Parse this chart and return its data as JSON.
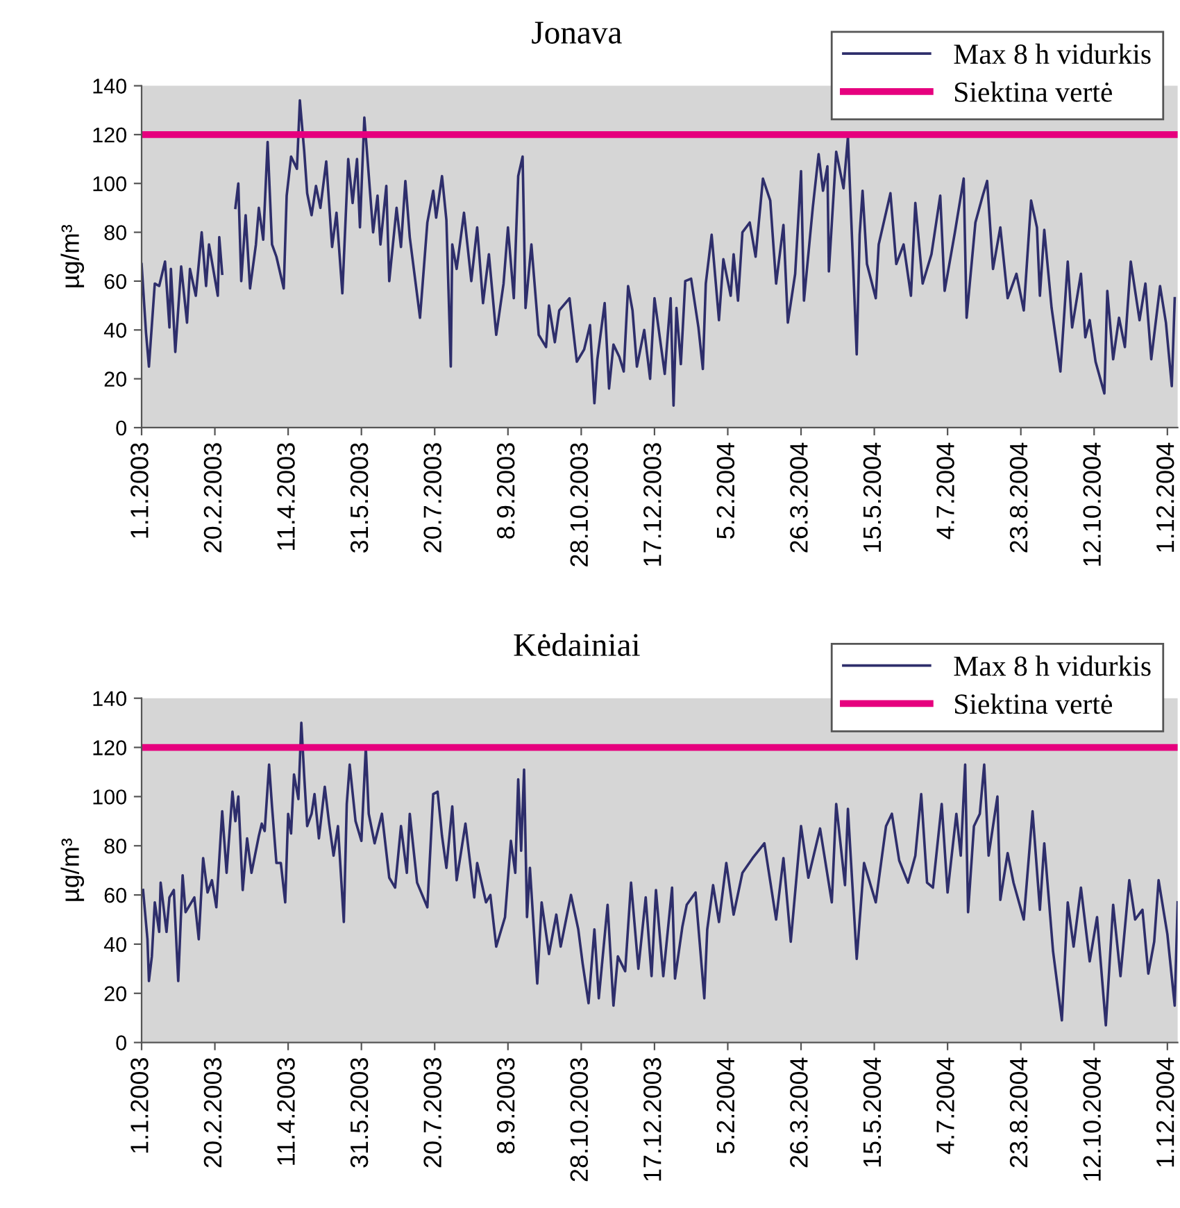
{
  "chart_data": [
    {
      "type": "line",
      "title": "Jonava",
      "ylabel": "µg/m³",
      "ylim": [
        0,
        140
      ],
      "yticks": [
        0,
        20,
        40,
        60,
        80,
        100,
        120,
        140
      ],
      "xlim": [
        "2003-01-01",
        "2004-12-08"
      ],
      "xticks": [
        {
          "value": "2003-01-01",
          "label": "1.1.2003"
        },
        {
          "value": "2003-02-20",
          "label": "20.2.2003"
        },
        {
          "value": "2003-04-11",
          "label": "11.4.2003"
        },
        {
          "value": "2003-05-31",
          "label": "31.5.2003"
        },
        {
          "value": "2003-07-20",
          "label": "20.7.2003"
        },
        {
          "value": "2003-09-08",
          "label": "8.9.2003"
        },
        {
          "value": "2003-10-28",
          "label": "28.10.2003"
        },
        {
          "value": "2003-12-17",
          "label": "17.12.2003"
        },
        {
          "value": "2004-02-05",
          "label": "5.2.2004"
        },
        {
          "value": "2004-03-26",
          "label": "26.3.2004"
        },
        {
          "value": "2004-05-15",
          "label": "15.5.2004"
        },
        {
          "value": "2004-07-04",
          "label": "4.7.2004"
        },
        {
          "value": "2004-08-23",
          "label": "23.8.2004"
        },
        {
          "value": "2004-10-12",
          "label": "12.10.2004"
        },
        {
          "value": "2004-12-01",
          "label": "1.12.2004"
        }
      ],
      "legend": "top right",
      "marker": "none",
      "line_style": "solid",
      "ref_lines": [
        {
          "axis": "y",
          "value": 120,
          "label": "Siektina vertė",
          "color": "#e6007e"
        }
      ],
      "series": [
        {
          "name": "Max 8 h vidurkis",
          "color": "#2e2e6b",
          "x": [
            "2003-01-01",
            "2003-01-04",
            "2003-01-06",
            "2003-01-10",
            "2003-01-13",
            "2003-01-17",
            "2003-01-20",
            "2003-01-21",
            "2003-01-24",
            "2003-01-28",
            "2003-02-01",
            "2003-02-03",
            "2003-02-07",
            "2003-02-11",
            "2003-02-14",
            "2003-02-16",
            "2003-02-22",
            "2003-02-23",
            "2003-02-25",
            "2003-03-02",
            "2003-03-06",
            "2003-03-08",
            "2003-03-10",
            "2003-03-13",
            "2003-03-16",
            "2003-03-20",
            "2003-03-22",
            "2003-03-25",
            "2003-03-28",
            "2003-03-31",
            "2003-04-03",
            "2003-04-08",
            "2003-04-10",
            "2003-04-13",
            "2003-04-17",
            "2003-04-19",
            "2003-04-22",
            "2003-04-24",
            "2003-04-27",
            "2003-04-30",
            "2003-05-03",
            "2003-05-07",
            "2003-05-11",
            "2003-05-14",
            "2003-05-18",
            "2003-05-22",
            "2003-05-25",
            "2003-05-28",
            "2003-05-30",
            "2003-06-02",
            "2003-06-08",
            "2003-06-11",
            "2003-06-13",
            "2003-06-17",
            "2003-06-19",
            "2003-06-24",
            "2003-06-27",
            "2003-06-30",
            "2003-07-03",
            "2003-07-10",
            "2003-07-15",
            "2003-07-19",
            "2003-07-21",
            "2003-07-25",
            "2003-07-28",
            "2003-07-31",
            "2003-08-01",
            "2003-08-04",
            "2003-08-09",
            "2003-08-14",
            "2003-08-18",
            "2003-08-22",
            "2003-08-26",
            "2003-08-31",
            "2003-09-05",
            "2003-09-08",
            "2003-09-12",
            "2003-09-15",
            "2003-09-18",
            "2003-09-20",
            "2003-09-24",
            "2003-09-29",
            "2003-10-04",
            "2003-10-06",
            "2003-10-10",
            "2003-10-13",
            "2003-10-20",
            "2003-10-25",
            "2003-10-30",
            "2003-11-03",
            "2003-11-06",
            "2003-11-08",
            "2003-11-13",
            "2003-11-16",
            "2003-11-19",
            "2003-11-23",
            "2003-11-26",
            "2003-11-29",
            "2003-12-02",
            "2003-12-05",
            "2003-12-10",
            "2003-12-14",
            "2003-12-17",
            "2003-12-24",
            "2003-12-28",
            "2003-12-30",
            "2004-01-01",
            "2004-01-04",
            "2004-01-07",
            "2004-01-11",
            "2004-01-16",
            "2004-01-19",
            "2004-01-21",
            "2004-01-25",
            "2004-01-30",
            "2004-02-02",
            "2004-02-07",
            "2004-02-09",
            "2004-02-12",
            "2004-02-15",
            "2004-02-20",
            "2004-02-24",
            "2004-02-29",
            "2004-03-05",
            "2004-03-09",
            "2004-03-14",
            "2004-03-17",
            "2004-03-22",
            "2004-03-26",
            "2004-03-28",
            "2004-04-03",
            "2004-04-07",
            "2004-04-10",
            "2004-04-13",
            "2004-04-14",
            "2004-04-19",
            "2004-04-24",
            "2004-04-27",
            "2004-05-03",
            "2004-05-05",
            "2004-05-07",
            "2004-05-10",
            "2004-05-16",
            "2004-05-18",
            "2004-05-26",
            "2004-05-30",
            "2004-06-04",
            "2004-06-09",
            "2004-06-12",
            "2004-06-17",
            "2004-06-23",
            "2004-06-29",
            "2004-07-02",
            "2004-07-09",
            "2004-07-15",
            "2004-07-17",
            "2004-07-23",
            "2004-07-28",
            "2004-07-31",
            "2004-08-04",
            "2004-08-09",
            "2004-08-14",
            "2004-08-20",
            "2004-08-25",
            "2004-08-30",
            "2004-09-03",
            "2004-09-05",
            "2004-09-08",
            "2004-09-13",
            "2004-09-19",
            "2004-09-24",
            "2004-09-27",
            "2004-10-03",
            "2004-10-06",
            "2004-10-09",
            "2004-10-13",
            "2004-10-19",
            "2004-10-21",
            "2004-10-25",
            "2004-10-29",
            "2004-11-02",
            "2004-11-06",
            "2004-11-12",
            "2004-11-16",
            "2004-11-20",
            "2004-11-26",
            "2004-11-30",
            "2004-12-04",
            "2004-12-06"
          ],
          "values": [
            67,
            39,
            25,
            59,
            58,
            68,
            41,
            65,
            31,
            66,
            43,
            65,
            54,
            80,
            58,
            75,
            54,
            78,
            63,
            null,
            90,
            100,
            60,
            87,
            57,
            75,
            90,
            77,
            117,
            75,
            70,
            57,
            95,
            111,
            106,
            134,
            113,
            96,
            87,
            99,
            90,
            109,
            74,
            88,
            55,
            110,
            92,
            110,
            82,
            127,
            80,
            95,
            75,
            99,
            60,
            90,
            74,
            101,
            78,
            45,
            84,
            97,
            86,
            103,
            85,
            25,
            75,
            65,
            88,
            60,
            82,
            51,
            71,
            38,
            59,
            82,
            53,
            103,
            111,
            49,
            75,
            38,
            33,
            50,
            35,
            48,
            53,
            27,
            32,
            42,
            10,
            28,
            51,
            16,
            34,
            29,
            23,
            58,
            48,
            25,
            40,
            20,
            53,
            22,
            53,
            9,
            49,
            26,
            60,
            61,
            41,
            24,
            59,
            79,
            44,
            69,
            54,
            71,
            52,
            80,
            84,
            70,
            102,
            93,
            59,
            83,
            43,
            63,
            105,
            52,
            90,
            112,
            97,
            107,
            64,
            113,
            98,
            119,
            30,
            79,
            97,
            67,
            53,
            75,
            96,
            67,
            75,
            54,
            92,
            59,
            71,
            95,
            56,
            80,
            102,
            45,
            84,
            95,
            101,
            65,
            82,
            53,
            63,
            48,
            93,
            82,
            54,
            81,
            49,
            23,
            68,
            41,
            63,
            37,
            44,
            27,
            14,
            56,
            28,
            45,
            33,
            68,
            44,
            59,
            28,
            58,
            43,
            17,
            53
          ]
        }
      ]
    },
    {
      "type": "line",
      "title": "Kėdainiai",
      "ylabel": "µg/m³",
      "ylim": [
        0,
        140
      ],
      "yticks": [
        0,
        20,
        40,
        60,
        80,
        100,
        120,
        140
      ],
      "xlim": [
        "2003-01-01",
        "2004-12-08"
      ],
      "xticks": [
        {
          "value": "2003-01-01",
          "label": "1.1.2003"
        },
        {
          "value": "2003-02-20",
          "label": "20.2.2003"
        },
        {
          "value": "2003-04-11",
          "label": "11.4.2003"
        },
        {
          "value": "2003-05-31",
          "label": "31.5.2003"
        },
        {
          "value": "2003-07-20",
          "label": "20.7.2003"
        },
        {
          "value": "2003-09-08",
          "label": "8.9.2003"
        },
        {
          "value": "2003-10-28",
          "label": "28.10.2003"
        },
        {
          "value": "2003-12-17",
          "label": "17.12.2003"
        },
        {
          "value": "2004-02-05",
          "label": "5.2.2004"
        },
        {
          "value": "2004-03-26",
          "label": "26.3.2004"
        },
        {
          "value": "2004-05-15",
          "label": "15.5.2004"
        },
        {
          "value": "2004-07-04",
          "label": "4.7.2004"
        },
        {
          "value": "2004-08-23",
          "label": "23.8.2004"
        },
        {
          "value": "2004-10-12",
          "label": "12.10.2004"
        },
        {
          "value": "2004-12-01",
          "label": "1.12.2004"
        }
      ],
      "legend": "top right",
      "marker": "none",
      "line_style": "solid",
      "ref_lines": [
        {
          "axis": "y",
          "value": 120,
          "label": "Siektina vertė",
          "color": "#e6007e"
        }
      ],
      "series": [
        {
          "name": "Max 8 h vidurkis",
          "color": "#2e2e6b",
          "x": [
            "2003-01-02",
            "2003-01-05",
            "2003-01-06",
            "2003-01-08",
            "2003-01-10",
            "2003-01-13",
            "2003-01-14",
            "2003-01-18",
            "2003-01-20",
            "2003-01-23",
            "2003-01-26",
            "2003-01-29",
            "2003-01-31",
            "2003-02-06",
            "2003-02-09",
            "2003-02-12",
            "2003-02-15",
            "2003-02-18",
            "2003-02-21",
            "2003-02-25",
            "2003-02-28",
            "2003-03-04",
            "2003-03-06",
            "2003-03-08",
            "2003-03-11",
            "2003-03-14",
            "2003-03-17",
            "2003-03-22",
            "2003-03-24",
            "2003-03-26",
            "2003-03-29",
            "2003-03-31",
            "2003-04-03",
            "2003-04-06",
            "2003-04-09",
            "2003-04-11",
            "2003-04-13",
            "2003-04-15",
            "2003-04-18",
            "2003-04-20",
            "2003-04-22",
            "2003-04-24",
            "2003-04-27",
            "2003-04-29",
            "2003-05-02",
            "2003-05-06",
            "2003-05-09",
            "2003-05-12",
            "2003-05-15",
            "2003-05-19",
            "2003-05-21",
            "2003-05-23",
            "2003-05-27",
            "2003-05-31",
            "2003-06-03",
            "2003-06-05",
            "2003-06-09",
            "2003-06-14",
            "2003-06-19",
            "2003-06-23",
            "2003-06-27",
            "2003-07-01",
            "2003-07-03",
            "2003-07-08",
            "2003-07-15",
            "2003-07-19",
            "2003-07-22",
            "2003-07-25",
            "2003-07-28",
            "2003-08-01",
            "2003-08-04",
            "2003-08-10",
            "2003-08-16",
            "2003-08-18",
            "2003-08-24",
            "2003-08-27",
            "2003-08-31",
            "2003-09-06",
            "2003-09-10",
            "2003-09-13",
            "2003-09-15",
            "2003-09-17",
            "2003-09-19",
            "2003-09-21",
            "2003-09-23",
            "2003-09-28",
            "2003-10-01",
            "2003-10-06",
            "2003-10-11",
            "2003-10-14",
            "2003-10-21",
            "2003-10-26",
            "2003-10-29",
            "2003-11-02",
            "2003-11-06",
            "2003-11-09",
            "2003-11-15",
            "2003-11-19",
            "2003-11-22",
            "2003-11-27",
            "2003-12-01",
            "2003-12-06",
            "2003-12-11",
            "2003-12-15",
            "2003-12-18",
            "2003-12-23",
            "2003-12-29",
            "2003-12-31",
            "2004-01-05",
            "2004-01-08",
            "2004-01-14",
            "2004-01-20",
            "2004-01-22",
            "2004-01-26",
            "2004-01-30",
            "2004-02-04",
            "2004-02-09",
            "2004-02-15",
            "2004-02-22",
            "2004-03-01",
            "2004-03-09",
            "2004-03-14",
            "2004-03-19",
            "2004-03-26",
            "2004-03-31",
            "2004-04-08",
            "2004-04-16",
            "2004-04-19",
            "2004-04-25",
            "2004-04-27",
            "2004-05-03",
            "2004-05-08",
            "2004-05-16",
            "2004-05-23",
            "2004-05-27",
            "2004-06-01",
            "2004-06-07",
            "2004-06-12",
            "2004-06-16",
            "2004-06-20",
            "2004-06-24",
            "2004-06-30",
            "2004-07-04",
            "2004-07-10",
            "2004-07-13",
            "2004-07-16",
            "2004-07-18",
            "2004-07-22",
            "2004-07-26",
            "2004-07-29",
            "2004-08-01",
            "2004-08-07",
            "2004-08-09",
            "2004-08-14",
            "2004-08-18",
            "2004-08-25",
            "2004-08-31",
            "2004-09-05",
            "2004-09-08",
            "2004-09-14",
            "2004-09-20",
            "2004-09-24",
            "2004-09-28",
            "2004-10-03",
            "2004-10-09",
            "2004-10-14",
            "2004-10-20",
            "2004-10-25",
            "2004-10-30",
            "2004-11-05",
            "2004-11-09",
            "2004-11-14",
            "2004-11-18",
            "2004-11-22",
            "2004-11-25",
            "2004-12-01",
            "2004-12-06",
            "2004-12-08"
          ],
          "values": [
            62,
            42,
            25,
            35,
            57,
            45,
            65,
            45,
            59,
            62,
            25,
            68,
            53,
            59,
            42,
            75,
            61,
            66,
            55,
            94,
            69,
            102,
            90,
            100,
            62,
            83,
            69,
            84,
            89,
            86,
            113,
            96,
            73,
            73,
            57,
            93,
            85,
            109,
            99,
            130,
            108,
            88,
            93,
            101,
            83,
            104,
            89,
            76,
            88,
            49,
            97,
            113,
            90,
            82,
            120,
            93,
            81,
            93,
            67,
            63,
            88,
            69,
            93,
            65,
            55,
            101,
            102,
            84,
            71,
            96,
            66,
            89,
            59,
            73,
            57,
            60,
            39,
            51,
            82,
            69,
            107,
            78,
            111,
            51,
            71,
            24,
            57,
            36,
            52,
            39,
            60,
            46,
            32,
            16,
            46,
            18,
            56,
            15,
            35,
            29,
            65,
            30,
            59,
            27,
            62,
            27,
            63,
            26,
            47,
            56,
            61,
            18,
            46,
            64,
            49,
            73,
            52,
            69,
            75,
            81,
            50,
            75,
            41,
            88,
            67,
            87,
            57,
            97,
            64,
            95,
            34,
            73,
            57,
            88,
            93,
            74,
            65,
            76,
            101,
            65,
            63,
            97,
            61,
            93,
            76,
            113,
            53,
            88,
            93,
            113,
            76,
            100,
            58,
            77,
            65,
            50,
            94,
            54,
            81,
            37,
            9,
            57,
            39,
            63,
            33,
            51,
            7,
            56,
            27,
            66,
            50,
            54,
            28,
            41,
            66,
            44,
            15,
            57
          ]
        }
      ]
    }
  ]
}
